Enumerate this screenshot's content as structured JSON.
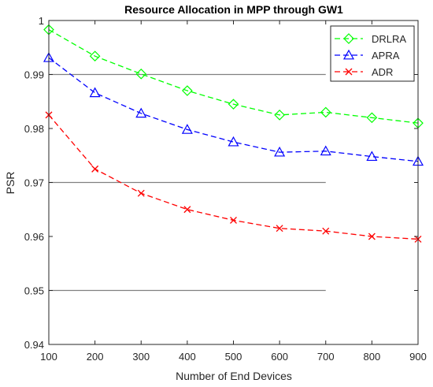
{
  "chart_data": {
    "type": "line",
    "title": "Resource Allocation in MPP through GW1",
    "xlabel": "Number of End Devices",
    "ylabel": "PSR",
    "x": [
      100,
      200,
      300,
      400,
      500,
      600,
      700,
      800,
      900
    ],
    "xlim": [
      100,
      900
    ],
    "ylim": [
      0.94,
      1.0
    ],
    "xticks": [
      "100",
      "200",
      "300",
      "400",
      "500",
      "600",
      "700",
      "800",
      "900"
    ],
    "yticks": [
      "0.94",
      "0.95",
      "0.96",
      "0.97",
      "0.98",
      "0.99",
      "1"
    ],
    "ytick_values": [
      0.94,
      0.95,
      0.96,
      0.97,
      0.98,
      0.99,
      1.0
    ],
    "legend_position": "top-right",
    "series": [
      {
        "name": "DRLRA",
        "color": "#00ff00",
        "marker": "diamond",
        "values": [
          0.9983,
          0.9934,
          0.9901,
          0.987,
          0.9845,
          0.9825,
          0.983,
          0.982,
          0.981
        ]
      },
      {
        "name": "APRA",
        "color": "#0000ff",
        "marker": "triangle",
        "values": [
          0.9931,
          0.9866,
          0.9828,
          0.9798,
          0.9775,
          0.9756,
          0.9758,
          0.9748,
          0.9739
        ]
      },
      {
        "name": "ADR",
        "color": "#ff0000",
        "marker": "x",
        "values": [
          0.9825,
          0.9725,
          0.968,
          0.965,
          0.963,
          0.9615,
          0.961,
          0.96,
          0.9595
        ]
      }
    ],
    "reference_lines": [
      0.99,
      0.97,
      0.95
    ]
  }
}
